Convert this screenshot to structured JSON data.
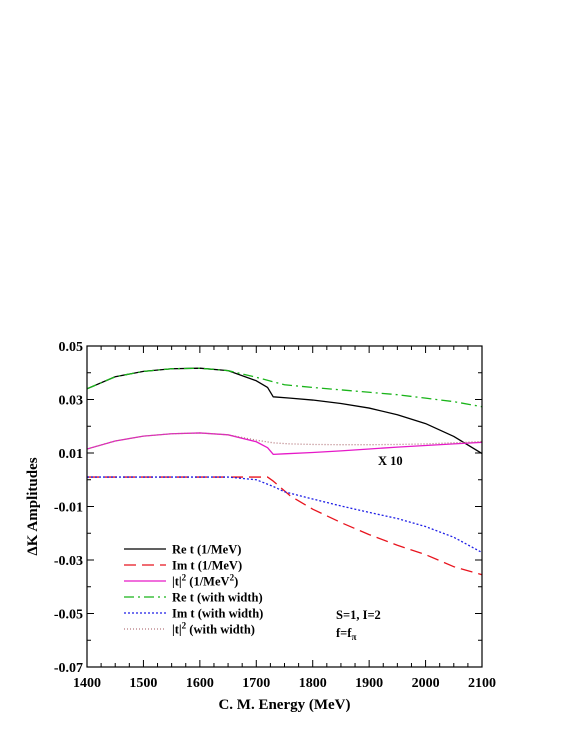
{
  "chart_data": {
    "type": "line",
    "xlabel": "C. M. Energy (MeV)",
    "ylabel": "ΔK Amplitudes",
    "xlim": [
      1400,
      2100
    ],
    "ylim": [
      -0.07,
      0.05
    ],
    "xticks": [
      1400,
      1500,
      1600,
      1700,
      1800,
      1900,
      2000,
      2100
    ],
    "yticks": [
      -0.07,
      -0.05,
      -0.03,
      -0.01,
      0.01,
      0.03,
      0.05
    ],
    "ytick_labels": [
      "-0.07",
      "-0.05",
      "-0.03",
      "-0.01",
      "0.01",
      "0.03",
      "0.05"
    ],
    "grid": false,
    "legend_position": "bottom-left",
    "annotations": {
      "scale_note": "X 10",
      "quantum_numbers": "S=1, I=2",
      "coupling_main": "f=f",
      "coupling_sub": "π"
    },
    "series": [
      {
        "name": "Re t (1/MeV)",
        "legend_main": "Re t (1/MeV)",
        "color": "#000000",
        "dash": "",
        "points": [
          [
            1400,
            0.034
          ],
          [
            1450,
            0.0385
          ],
          [
            1500,
            0.0405
          ],
          [
            1550,
            0.0415
          ],
          [
            1600,
            0.0417
          ],
          [
            1650,
            0.0408
          ],
          [
            1700,
            0.037
          ],
          [
            1720,
            0.0345
          ],
          [
            1730,
            0.031
          ],
          [
            1760,
            0.0305
          ],
          [
            1800,
            0.0298
          ],
          [
            1850,
            0.0285
          ],
          [
            1900,
            0.0268
          ],
          [
            1950,
            0.0243
          ],
          [
            2000,
            0.021
          ],
          [
            2050,
            0.0162
          ],
          [
            2100,
            0.0098
          ]
        ]
      },
      {
        "name": "Im t (1/MeV)",
        "legend_main": "Im t (1/MeV)",
        "color": "#e8141e",
        "dash": "12,6",
        "points": [
          [
            1400,
            0.001
          ],
          [
            1500,
            0.001
          ],
          [
            1600,
            0.001
          ],
          [
            1700,
            0.001
          ],
          [
            1720,
            0.001
          ],
          [
            1730,
            -0.0005
          ],
          [
            1760,
            -0.006
          ],
          [
            1800,
            -0.011
          ],
          [
            1850,
            -0.016
          ],
          [
            1900,
            -0.0205
          ],
          [
            1950,
            -0.0245
          ],
          [
            2000,
            -0.028
          ],
          [
            2050,
            -0.0325
          ],
          [
            2100,
            -0.0355
          ]
        ]
      },
      {
        "name": "|t|² (1/MeV²)",
        "legend_main": "|t|",
        "legend_sup": "2",
        "legend_tail": " (1/MeV",
        "legend_sup2": "2",
        "legend_end": ")",
        "color": "#e619c8",
        "dash": "",
        "points": [
          [
            1400,
            0.0115
          ],
          [
            1450,
            0.0145
          ],
          [
            1500,
            0.0163
          ],
          [
            1550,
            0.0172
          ],
          [
            1600,
            0.0175
          ],
          [
            1650,
            0.0168
          ],
          [
            1700,
            0.0142
          ],
          [
            1720,
            0.012
          ],
          [
            1730,
            0.0095
          ],
          [
            1750,
            0.0097
          ],
          [
            1800,
            0.0102
          ],
          [
            1850,
            0.0108
          ],
          [
            1900,
            0.0115
          ],
          [
            1950,
            0.0122
          ],
          [
            2000,
            0.0128
          ],
          [
            2050,
            0.0134
          ],
          [
            2100,
            0.014
          ]
        ]
      },
      {
        "name": "Re t (with width)",
        "legend_main": "Re t (with width)",
        "color": "#19b419",
        "dash": "10,4,2,4",
        "points": [
          [
            1400,
            0.034
          ],
          [
            1450,
            0.0385
          ],
          [
            1500,
            0.0405
          ],
          [
            1550,
            0.0415
          ],
          [
            1600,
            0.0417
          ],
          [
            1650,
            0.0408
          ],
          [
            1700,
            0.0383
          ],
          [
            1750,
            0.0355
          ],
          [
            1800,
            0.0345
          ],
          [
            1850,
            0.0336
          ],
          [
            1900,
            0.0327
          ],
          [
            1950,
            0.0318
          ],
          [
            2000,
            0.0305
          ],
          [
            2050,
            0.0292
          ],
          [
            2100,
            0.0273
          ]
        ]
      },
      {
        "name": "Im t (with width)",
        "legend_main": "Im t (with width)",
        "color": "#1e1ee6",
        "dash": "2,2",
        "points": [
          [
            1400,
            0.001
          ],
          [
            1500,
            0.001
          ],
          [
            1600,
            0.001
          ],
          [
            1650,
            0.001
          ],
          [
            1700,
            0.0
          ],
          [
            1730,
            -0.0025
          ],
          [
            1750,
            -0.0045
          ],
          [
            1800,
            -0.0072
          ],
          [
            1850,
            -0.0098
          ],
          [
            1900,
            -0.0122
          ],
          [
            1950,
            -0.0145
          ],
          [
            2000,
            -0.0175
          ],
          [
            2050,
            -0.0215
          ],
          [
            2100,
            -0.0272
          ]
        ]
      },
      {
        "name": "|t|² (with width)",
        "legend_main": "|t|",
        "legend_sup": "2",
        "legend_tail": " (with width)",
        "color": "#b4787d",
        "dash": "1,2",
        "points": [
          [
            1400,
            0.0115
          ],
          [
            1450,
            0.0145
          ],
          [
            1500,
            0.0163
          ],
          [
            1550,
            0.0172
          ],
          [
            1600,
            0.0175
          ],
          [
            1650,
            0.0168
          ],
          [
            1700,
            0.0148
          ],
          [
            1730,
            0.0138
          ],
          [
            1760,
            0.0134
          ],
          [
            1800,
            0.0132
          ],
          [
            1850,
            0.0131
          ],
          [
            1900,
            0.0131
          ],
          [
            1950,
            0.0132
          ],
          [
            2000,
            0.0134
          ],
          [
            2050,
            0.0138
          ],
          [
            2100,
            0.0143
          ]
        ]
      }
    ]
  }
}
